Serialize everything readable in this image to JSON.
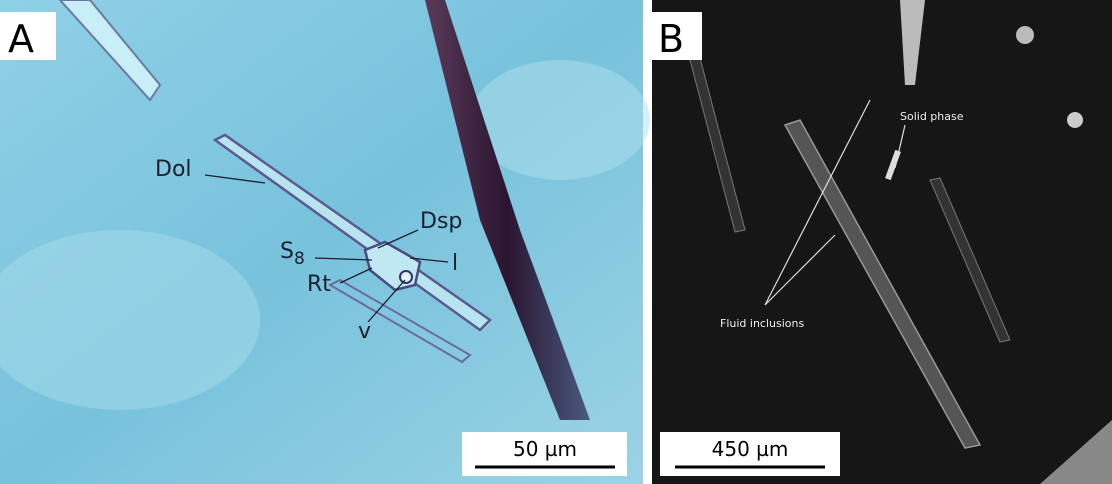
{
  "panels": [
    {
      "label": "A",
      "annotations": {
        "dol": "Dol",
        "dsp": "Dsp",
        "s8": {
          "base": "S",
          "sub": "8"
        },
        "l": "l",
        "rt": "Rt",
        "v": "v"
      },
      "scale_bar": "50 µm"
    },
    {
      "label": "B",
      "annotations": {
        "solid_phase": "Solid phase",
        "fluid_inclusions": "Fluid inclusions"
      },
      "scale_bar": "450 µm"
    }
  ]
}
